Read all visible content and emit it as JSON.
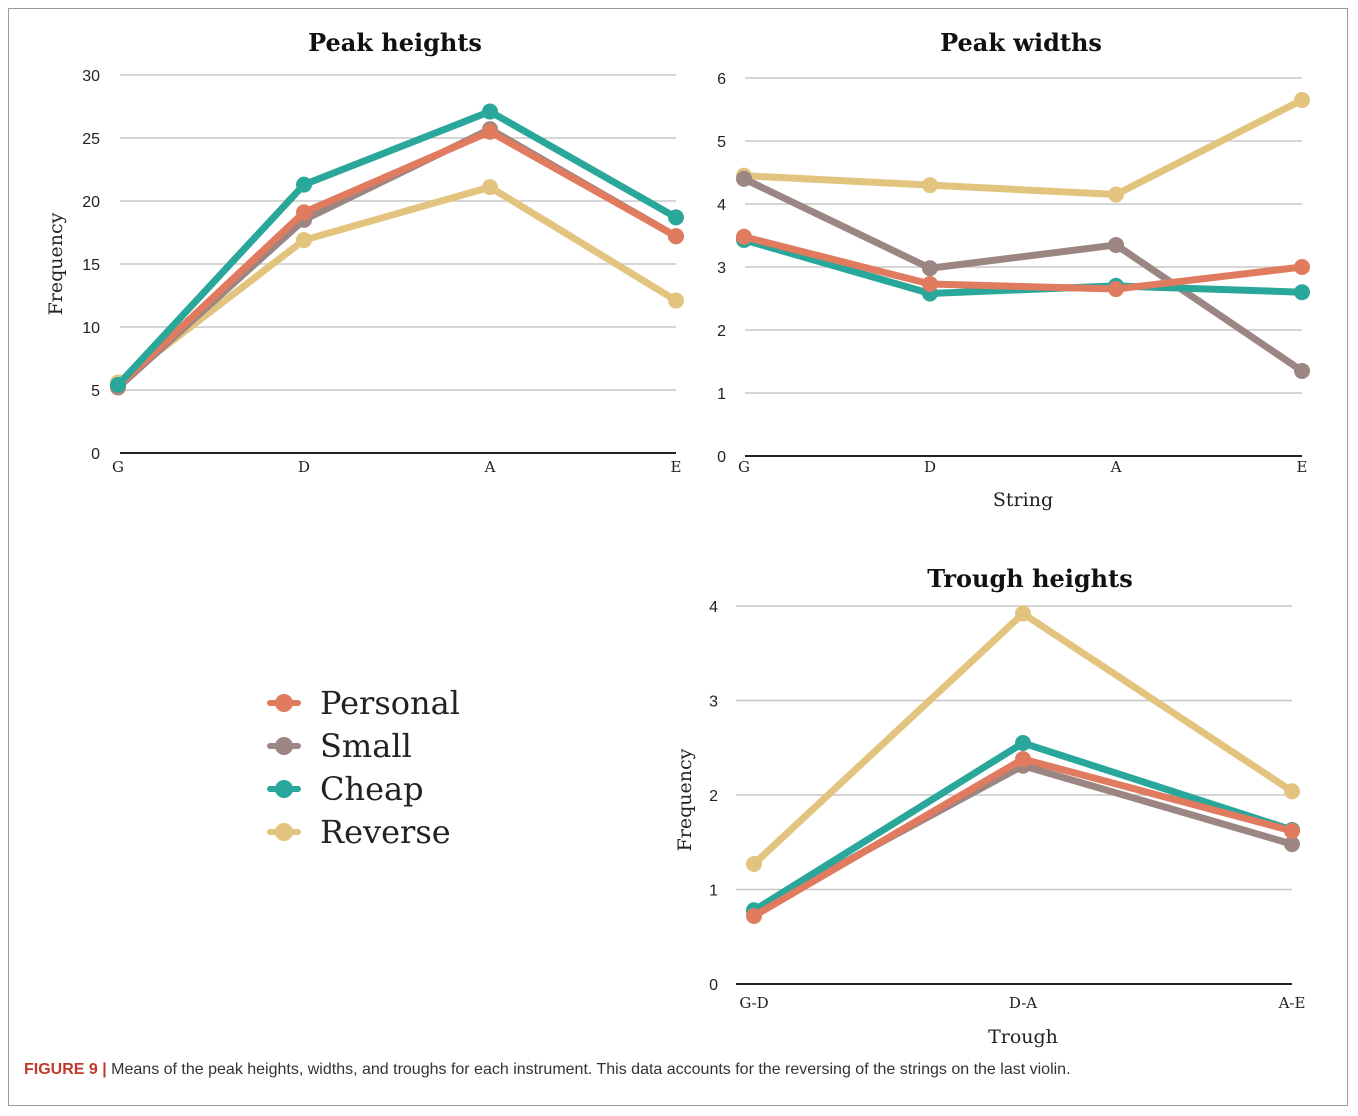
{
  "caption": {
    "label": "FIGURE 9 |",
    "text": "Means of the peak heights, widths, and troughs for each instrument. This data accounts for the reversing of the strings on the last violin."
  },
  "colors": {
    "Personal": "#e07b5f",
    "Small": "#9c8683",
    "Cheap": "#2aa79b",
    "Reverse": "#e3c47e",
    "grid": "#c8c8c8",
    "baseline": "#222222"
  },
  "legend": [
    "Personal",
    "Small",
    "Cheap",
    "Reverse"
  ],
  "chart_data": [
    {
      "id": "peak-heights",
      "type": "line",
      "title": "Peak heights",
      "xlabel": "",
      "ylabel": "Frequency",
      "categories": [
        "G",
        "D",
        "A",
        "E"
      ],
      "ylim": [
        0,
        30
      ],
      "yticks": [
        0,
        5,
        10,
        15,
        20,
        25,
        30
      ],
      "grid": true,
      "series": [
        {
          "name": "Reverse",
          "values": [
            5.6,
            16.9,
            21.1,
            12.1
          ]
        },
        {
          "name": "Small",
          "values": [
            5.2,
            18.5,
            25.7,
            17.2
          ]
        },
        {
          "name": "Personal",
          "values": [
            5.3,
            19.1,
            25.5,
            17.2
          ]
        },
        {
          "name": "Cheap",
          "values": [
            5.4,
            21.3,
            27.1,
            18.7
          ]
        }
      ]
    },
    {
      "id": "peak-widths",
      "type": "line",
      "title": "Peak widths",
      "xlabel": "String",
      "ylabel": "",
      "categories": [
        "G",
        "D",
        "A",
        "E"
      ],
      "ylim": [
        0,
        6
      ],
      "yticks": [
        0,
        1,
        2,
        3,
        4,
        5,
        6
      ],
      "grid": true,
      "series": [
        {
          "name": "Reverse",
          "values": [
            4.45,
            4.3,
            4.15,
            5.65
          ]
        },
        {
          "name": "Small",
          "values": [
            4.4,
            2.98,
            3.35,
            1.35
          ]
        },
        {
          "name": "Cheap",
          "values": [
            3.43,
            2.58,
            2.7,
            2.6
          ]
        },
        {
          "name": "Personal",
          "values": [
            3.48,
            2.73,
            2.65,
            3.0
          ]
        }
      ]
    },
    {
      "id": "trough-heights",
      "type": "line",
      "title": "Trough heights",
      "xlabel": "Trough",
      "ylabel": "Frequency",
      "categories": [
        "G-D",
        "D-A",
        "A-E"
      ],
      "ylim": [
        0,
        4
      ],
      "yticks": [
        0,
        1,
        2,
        3,
        4
      ],
      "grid": true,
      "series": [
        {
          "name": "Reverse",
          "values": [
            1.27,
            3.92,
            2.04
          ]
        },
        {
          "name": "Small",
          "values": [
            0.77,
            2.31,
            1.48
          ]
        },
        {
          "name": "Cheap",
          "values": [
            0.78,
            2.55,
            1.63
          ]
        },
        {
          "name": "Personal",
          "values": [
            0.72,
            2.38,
            1.62
          ]
        }
      ]
    }
  ]
}
